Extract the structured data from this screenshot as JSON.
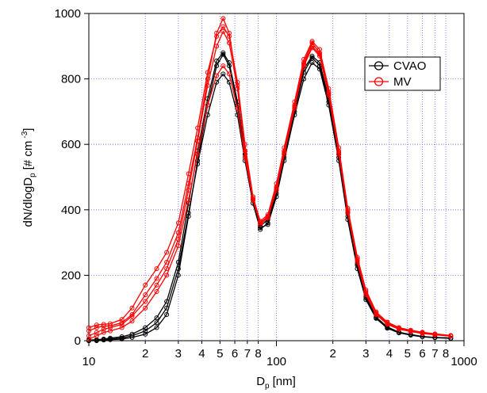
{
  "chart_data": {
    "type": "line",
    "x_label": {
      "main": "D",
      "sub": "p",
      "unit": "[nm]"
    },
    "y_label": {
      "main": "dN/dlogD",
      "sub": "p",
      "unit": "[# cm",
      "sup": "-3",
      "end": "]"
    },
    "xscale": "log",
    "xlim": [
      10,
      1000
    ],
    "ylim": [
      0,
      1000
    ],
    "xticks": [
      10,
      {
        "value": 20,
        "label": "2"
      },
      {
        "value": 30,
        "label": "3"
      },
      {
        "value": 40,
        "label": "4"
      },
      {
        "value": 50,
        "label": "5"
      },
      {
        "value": 60,
        "label": "6"
      },
      {
        "value": 70,
        "label": "7"
      },
      {
        "value": 80,
        "label": "8"
      },
      100,
      {
        "value": 200,
        "label": "2"
      },
      {
        "value": 300,
        "label": "3"
      },
      {
        "value": 400,
        "label": "4"
      },
      {
        "value": 500,
        "label": "5"
      },
      {
        "value": 600,
        "label": "6"
      },
      {
        "value": 700,
        "label": "7"
      },
      {
        "value": 800,
        "label": "8"
      },
      1000
    ],
    "yticks": [
      0,
      200,
      400,
      600,
      800,
      1000
    ],
    "grid": true,
    "legend": "upper right",
    "x": [
      10,
      11,
      12,
      13,
      15,
      17,
      20,
      23,
      26,
      30,
      34,
      38,
      43,
      48,
      52,
      56,
      62,
      68,
      75,
      82,
      90,
      100,
      110,
      125,
      140,
      155,
      170,
      190,
      215,
      240,
      270,
      300,
      340,
      390,
      450,
      520,
      600,
      700,
      850
    ],
    "series": [
      {
        "name": "CVAO",
        "color": "#000000",
        "runs": [
          {
            "values": [
              0,
              0,
              2,
              3,
              5,
              10,
              20,
              40,
              80,
              200,
              380,
              550,
              720,
              840,
              875,
              840,
              720,
              560,
              420,
              340,
              360,
              450,
              560,
              700,
              820,
              865,
              840,
              730,
              560,
              380,
              230,
              130,
              70,
              40,
              25,
              18,
              12,
              10,
              8
            ]
          },
          {
            "values": [
              0,
              1,
              3,
              5,
              8,
              15,
              30,
              55,
              100,
              220,
              390,
              540,
              690,
              790,
              815,
              790,
              690,
              550,
              420,
              345,
              355,
              440,
              550,
              690,
              800,
              850,
              830,
              720,
              550,
              370,
              220,
              125,
              68,
              38,
              24,
              17,
              12,
              9,
              7
            ]
          },
          {
            "values": [
              2,
              3,
              5,
              8,
              12,
              20,
              40,
              70,
              120,
              240,
              420,
              580,
              740,
              855,
              880,
              850,
              730,
              570,
              430,
              350,
              370,
              460,
              570,
              710,
              830,
              870,
              850,
              740,
              570,
              390,
              235,
              135,
              72,
              42,
              26,
              19,
              13,
              10,
              8
            ]
          }
        ]
      },
      {
        "name": "MV",
        "color": "#ff0000",
        "runs": [
          {
            "values": [
              30,
              40,
              45,
              45,
              55,
              80,
              140,
              190,
              240,
              330,
              480,
              620,
              800,
              940,
              985,
              940,
              780,
              580,
              430,
              360,
              380,
              470,
              580,
              720,
              850,
              910,
              880,
              760,
              580,
              400,
              250,
              150,
              85,
              55,
              38,
              30,
              25,
              20,
              15
            ]
          },
          {
            "values": [
              5,
              15,
              25,
              30,
              40,
              60,
              100,
              150,
              200,
              290,
              430,
              570,
              720,
              810,
              840,
              815,
              710,
              560,
              430,
              355,
              375,
              460,
              570,
              710,
              840,
              895,
              870,
              750,
              570,
              390,
              240,
              140,
              80,
              50,
              35,
              28,
              22,
              18,
              14
            ]
          },
          {
            "values": [
              40,
              48,
              50,
              52,
              65,
              100,
              170,
              220,
              270,
              360,
              510,
              650,
              820,
              930,
              960,
              930,
              790,
              600,
              440,
              365,
              385,
              480,
              590,
              730,
              860,
              915,
              890,
              770,
              590,
              405,
              255,
              155,
              88,
              57,
              40,
              32,
              26,
              21,
              16
            ]
          },
          {
            "values": [
              15,
              25,
              35,
              40,
              50,
              75,
              120,
              170,
              220,
              310,
              460,
              610,
              780,
              900,
              945,
              910,
              770,
              580,
              435,
              360,
              378,
              465,
              575,
              715,
              845,
              900,
              875,
              755,
              575,
              395,
              245,
              145,
              82,
              52,
              36,
              29,
              23,
              19,
              14
            ]
          }
        ]
      }
    ]
  }
}
